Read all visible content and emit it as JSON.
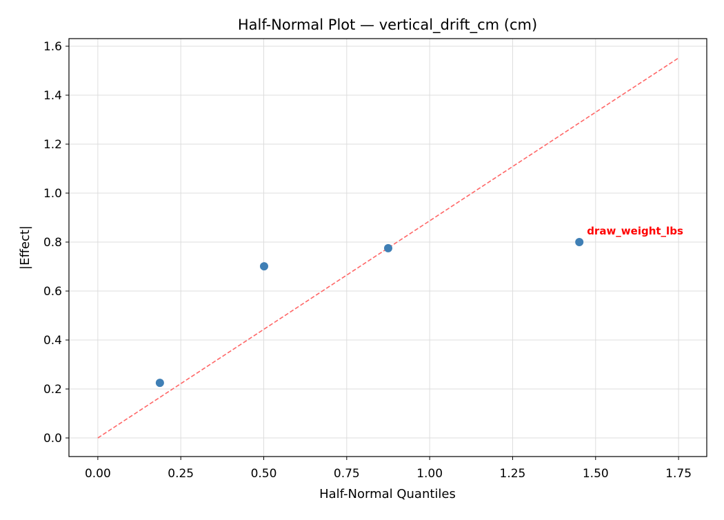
{
  "chart_data": {
    "type": "scatter",
    "title": "Half-Normal Plot — vertical_drift_cm (cm)",
    "xlabel": "Half-Normal Quantiles",
    "ylabel": "|Effect|",
    "xlim": [
      -0.087,
      1.835
    ],
    "ylim": [
      -0.076,
      1.631
    ],
    "xticks": [
      0.0,
      0.25,
      0.5,
      0.75,
      1.0,
      1.25,
      1.5,
      1.75
    ],
    "xtick_labels": [
      "0.00",
      "0.25",
      "0.50",
      "0.75",
      "1.00",
      "1.25",
      "1.50",
      "1.75"
    ],
    "yticks": [
      0.0,
      0.2,
      0.4,
      0.6,
      0.8,
      1.0,
      1.2,
      1.4,
      1.6
    ],
    "ytick_labels": [
      "0.0",
      "0.2",
      "0.4",
      "0.6",
      "0.8",
      "1.0",
      "1.2",
      "1.4",
      "1.6"
    ],
    "grid": true,
    "points": [
      {
        "x": 0.187,
        "y": 0.225
      },
      {
        "x": 0.501,
        "y": 0.701
      },
      {
        "x": 0.875,
        "y": 0.775
      },
      {
        "x": 1.451,
        "y": 0.8,
        "label": "draw_weight_lbs"
      }
    ],
    "reference_line": {
      "x": [
        0.0,
        1.75
      ],
      "y": [
        0.0,
        1.552
      ],
      "style": "dashed"
    },
    "colors": {
      "points": "#3f7fb5",
      "reference_line": "#ff6666",
      "annotation": "#ff0000"
    }
  }
}
